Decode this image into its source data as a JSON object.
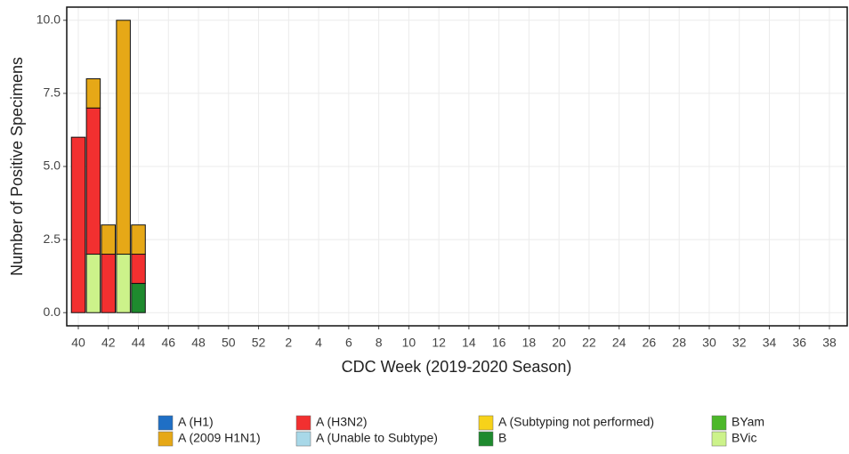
{
  "chart_data": {
    "type": "stacked_bar",
    "x_label": "CDC Week (2019-2020 Season)",
    "y_label": "Number of Positive Specimens",
    "categories": [
      "40",
      null,
      "42",
      null,
      "44",
      null,
      "46",
      null,
      "48",
      null,
      "50",
      null,
      "52",
      null,
      "2",
      null,
      "4",
      null,
      "6",
      null,
      "8",
      null,
      "10",
      null,
      "12",
      null,
      "14",
      null,
      "16",
      null,
      "18",
      null,
      "20",
      null,
      "22",
      null,
      "24",
      null,
      "26",
      null,
      "28",
      null,
      "30",
      null,
      "32",
      null,
      "34",
      null,
      "36",
      null,
      "38",
      null
    ],
    "series": [
      {
        "name": "A (H1)",
        "color": "#1f6fc5",
        "values": [
          0,
          0,
          0,
          0,
          0,
          0,
          0,
          0,
          0,
          0,
          0,
          0,
          0,
          0,
          0,
          0,
          0,
          0,
          0,
          0,
          0,
          0,
          0,
          0,
          0,
          0,
          0,
          0,
          0,
          0,
          0,
          0,
          0,
          0,
          0,
          0,
          0,
          0,
          0,
          0,
          0,
          0,
          0,
          0,
          0,
          0,
          0,
          0,
          0,
          0,
          0,
          0
        ]
      },
      {
        "name": "A (2009 H1N1)",
        "color": "#e6a817",
        "values": [
          0,
          1,
          1,
          8,
          1,
          0,
          0,
          0,
          0,
          0,
          0,
          0,
          0,
          0,
          0,
          0,
          0,
          0,
          0,
          0,
          0,
          0,
          0,
          0,
          0,
          0,
          0,
          0,
          0,
          0,
          0,
          0,
          0,
          0,
          0,
          0,
          0,
          0,
          0,
          0,
          0,
          0,
          0,
          0,
          0,
          0,
          0,
          0,
          0,
          0,
          0,
          0
        ]
      },
      {
        "name": "A (H3N2)",
        "color": "#f23030",
        "values": [
          6,
          5,
          2,
          0,
          1,
          0,
          0,
          0,
          0,
          0,
          0,
          0,
          0,
          0,
          0,
          0,
          0,
          0,
          0,
          0,
          0,
          0,
          0,
          0,
          0,
          0,
          0,
          0,
          0,
          0,
          0,
          0,
          0,
          0,
          0,
          0,
          0,
          0,
          0,
          0,
          0,
          0,
          0,
          0,
          0,
          0,
          0,
          0,
          0,
          0,
          0,
          0
        ]
      },
      {
        "name": "A (Unable to Subtype)",
        "color": "#a8d8e8",
        "values": [
          0,
          0,
          0,
          0,
          0,
          0,
          0,
          0,
          0,
          0,
          0,
          0,
          0,
          0,
          0,
          0,
          0,
          0,
          0,
          0,
          0,
          0,
          0,
          0,
          0,
          0,
          0,
          0,
          0,
          0,
          0,
          0,
          0,
          0,
          0,
          0,
          0,
          0,
          0,
          0,
          0,
          0,
          0,
          0,
          0,
          0,
          0,
          0,
          0,
          0,
          0,
          0
        ]
      },
      {
        "name": "A (Subtyping not performed)",
        "color": "#f7d21a",
        "values": [
          0,
          0,
          0,
          0,
          0,
          0,
          0,
          0,
          0,
          0,
          0,
          0,
          0,
          0,
          0,
          0,
          0,
          0,
          0,
          0,
          0,
          0,
          0,
          0,
          0,
          0,
          0,
          0,
          0,
          0,
          0,
          0,
          0,
          0,
          0,
          0,
          0,
          0,
          0,
          0,
          0,
          0,
          0,
          0,
          0,
          0,
          0,
          0,
          0,
          0,
          0,
          0
        ]
      },
      {
        "name": "B",
        "color": "#1e8a2e",
        "values": [
          0,
          0,
          0,
          0,
          1,
          0,
          0,
          0,
          0,
          0,
          0,
          0,
          0,
          0,
          0,
          0,
          0,
          0,
          0,
          0,
          0,
          0,
          0,
          0,
          0,
          0,
          0,
          0,
          0,
          0,
          0,
          0,
          0,
          0,
          0,
          0,
          0,
          0,
          0,
          0,
          0,
          0,
          0,
          0,
          0,
          0,
          0,
          0,
          0,
          0,
          0,
          0
        ]
      },
      {
        "name": "BYam",
        "color": "#4cb82a",
        "values": [
          0,
          0,
          0,
          0,
          0,
          0,
          0,
          0,
          0,
          0,
          0,
          0,
          0,
          0,
          0,
          0,
          0,
          0,
          0,
          0,
          0,
          0,
          0,
          0,
          0,
          0,
          0,
          0,
          0,
          0,
          0,
          0,
          0,
          0,
          0,
          0,
          0,
          0,
          0,
          0,
          0,
          0,
          0,
          0,
          0,
          0,
          0,
          0,
          0,
          0,
          0,
          0
        ]
      },
      {
        "name": "BVic",
        "color": "#ccf28a",
        "values": [
          0,
          2,
          0,
          2,
          0,
          0,
          0,
          0,
          0,
          0,
          0,
          0,
          0,
          0,
          0,
          0,
          0,
          0,
          0,
          0,
          0,
          0,
          0,
          0,
          0,
          0,
          0,
          0,
          0,
          0,
          0,
          0,
          0,
          0,
          0,
          0,
          0,
          0,
          0,
          0,
          0,
          0,
          0,
          0,
          0,
          0,
          0,
          0,
          0,
          0,
          0,
          0
        ]
      }
    ],
    "ylim": [
      -0.45,
      10.45
    ],
    "yticks": [
      {
        "value": 0,
        "label": "0.0"
      },
      {
        "value": 2.5,
        "label": "2.5"
      },
      {
        "value": 5,
        "label": "5.0"
      },
      {
        "value": 7.5,
        "label": "7.5"
      },
      {
        "value": 10,
        "label": "10.0"
      }
    ],
    "grid": true,
    "legend": "bottom"
  }
}
